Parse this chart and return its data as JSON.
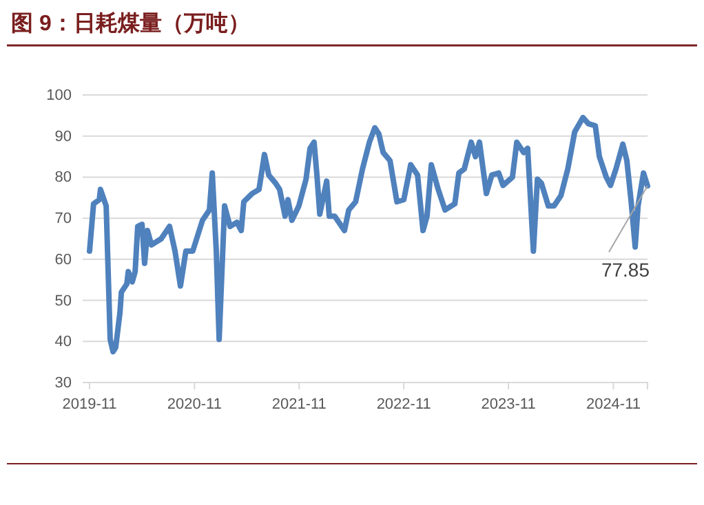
{
  "chart_data": {
    "type": "line",
    "title": "图 9：日耗煤量（万吨）",
    "x": [
      "2019-11-01",
      "2019-11-15",
      "2019-12-05",
      "2019-12-09",
      "2019-12-29",
      "2020-01-12",
      "2020-01-22",
      "2020-01-31",
      "2020-02-15",
      "2020-02-20",
      "2020-03-10",
      "2020-03-15",
      "2020-03-29",
      "2020-04-08",
      "2020-04-17",
      "2020-05-02",
      "2020-05-11",
      "2020-05-21",
      "2020-06-04",
      "2020-07-08",
      "2020-08-06",
      "2020-08-25",
      "2020-09-13",
      "2020-10-02",
      "2020-10-26",
      "2020-11-29",
      "2020-12-23",
      "2021-01-02",
      "2021-01-16",
      "2021-01-26",
      "2021-02-14",
      "2021-03-05",
      "2021-03-29",
      "2021-04-13",
      "2021-04-22",
      "2021-05-21",
      "2021-06-14",
      "2021-07-03",
      "2021-07-18",
      "2021-08-11",
      "2021-08-25",
      "2021-09-13",
      "2021-09-23",
      "2021-10-07",
      "2021-10-31",
      "2021-11-25",
      "2021-12-09",
      "2021-12-23",
      "2022-01-02",
      "2022-01-12",
      "2022-02-05",
      "2022-02-14",
      "2022-03-05",
      "2022-04-08",
      "2022-04-23",
      "2022-05-17",
      "2022-06-10",
      "2022-07-04",
      "2022-07-23",
      "2022-08-06",
      "2022-08-21",
      "2022-09-14",
      "2022-10-08",
      "2022-11-01",
      "2022-11-25",
      "2022-12-19",
      "2023-01-07",
      "2023-01-21",
      "2023-02-05",
      "2023-03-01",
      "2023-03-25",
      "2023-04-28",
      "2023-05-12",
      "2023-05-31",
      "2023-06-24",
      "2023-07-09",
      "2023-07-23",
      "2023-08-16",
      "2023-09-04",
      "2023-09-28",
      "2023-10-13",
      "2023-11-15",
      "2023-11-30",
      "2023-12-24",
      "2024-01-07",
      "2024-01-27",
      "2024-02-10",
      "2024-02-24",
      "2024-03-19",
      "2024-04-08",
      "2024-05-02",
      "2024-05-26",
      "2024-06-19",
      "2024-07-18",
      "2024-08-06",
      "2024-08-30",
      "2024-09-13",
      "2024-10-07",
      "2024-10-22",
      "2024-11-10",
      "2024-12-04",
      "2024-12-18",
      "2025-01-02",
      "2025-01-16",
      "2025-01-26",
      "2025-02-14",
      "2025-02-28"
    ],
    "series": [
      {
        "color": "#4f81bd",
        "values": [
          62,
          73.5,
          74.5,
          77,
          73,
          40.5,
          37.5,
          38.5,
          47,
          52,
          54,
          57,
          54.5,
          57,
          68,
          68.5,
          59,
          67,
          63.5,
          65,
          68,
          62,
          53.5,
          62,
          62,
          69.5,
          72,
          81,
          62,
          40.5,
          73,
          68,
          69,
          67,
          74,
          76,
          77,
          85.5,
          80.5,
          78.5,
          77,
          70.5,
          74.5,
          69.5,
          73,
          79.5,
          87,
          88.5,
          80.5,
          71,
          79,
          70.5,
          70.5,
          67,
          72,
          74,
          82,
          88.5,
          92,
          90.5,
          86,
          84,
          74,
          74.5,
          83,
          80.5,
          67,
          70.5,
          83,
          77,
          72,
          73.5,
          81,
          82,
          88.5,
          85,
          88.5,
          76,
          80.5,
          81,
          78,
          80,
          88.5,
          86,
          87,
          62,
          79.5,
          78.5,
          73,
          73,
          75.5,
          82,
          91,
          94.5,
          93,
          92.5,
          85,
          80,
          78,
          82,
          88,
          84,
          74,
          63,
          73,
          81,
          77.85
        ]
      }
    ],
    "xlim": [
      "2019-11-01",
      "2025-02-28"
    ],
    "xticks": [
      "2019-11",
      "2020-11",
      "2021-11",
      "2022-11",
      "2023-11",
      "2024-11"
    ],
    "ylim": [
      30,
      100
    ],
    "yticks": [
      30,
      40,
      50,
      60,
      70,
      80,
      90,
      100
    ],
    "grid": "y",
    "annotations": [
      {
        "text": "77.85",
        "x": "2025-02-28",
        "y": 77.85
      }
    ]
  }
}
